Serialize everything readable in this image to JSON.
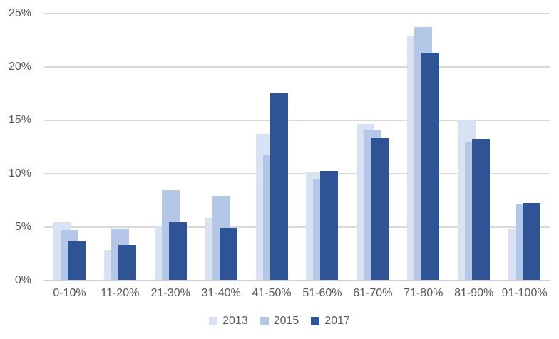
{
  "chart_data": {
    "type": "bar",
    "title": "",
    "xlabel": "",
    "ylabel": "",
    "categories": [
      "0-10%",
      "11-20%",
      "21-30%",
      "31-40%",
      "41-50%",
      "51-60%",
      "61-70%",
      "71-80%",
      "81-90%",
      "91-100%"
    ],
    "series": [
      {
        "name": "2013",
        "color": "#d9e2f3",
        "values": [
          5.4,
          2.8,
          5.0,
          5.8,
          13.7,
          10.1,
          14.6,
          22.8,
          15.0,
          4.8
        ]
      },
      {
        "name": "2015",
        "color": "#b4c7e7",
        "values": [
          4.7,
          4.8,
          8.4,
          7.9,
          11.7,
          9.4,
          14.1,
          23.7,
          12.9,
          7.1
        ]
      },
      {
        "name": "2017",
        "color": "#2f5496",
        "values": [
          3.6,
          3.3,
          5.4,
          4.9,
          17.5,
          10.2,
          13.3,
          21.3,
          13.2,
          7.2
        ]
      }
    ],
    "y_ticks": [
      "0%",
      "5%",
      "10%",
      "15%",
      "20%",
      "25%"
    ],
    "ylim": [
      0,
      25
    ],
    "y_tick_step": 5,
    "grid": true,
    "legend_position": "bottom",
    "bar_style": "overlapped-stagger"
  },
  "colors": {
    "background": "#ffffff",
    "gridline": "#d9d9d9",
    "axis_line": "#cfcfcf",
    "label_text": "#595959"
  }
}
